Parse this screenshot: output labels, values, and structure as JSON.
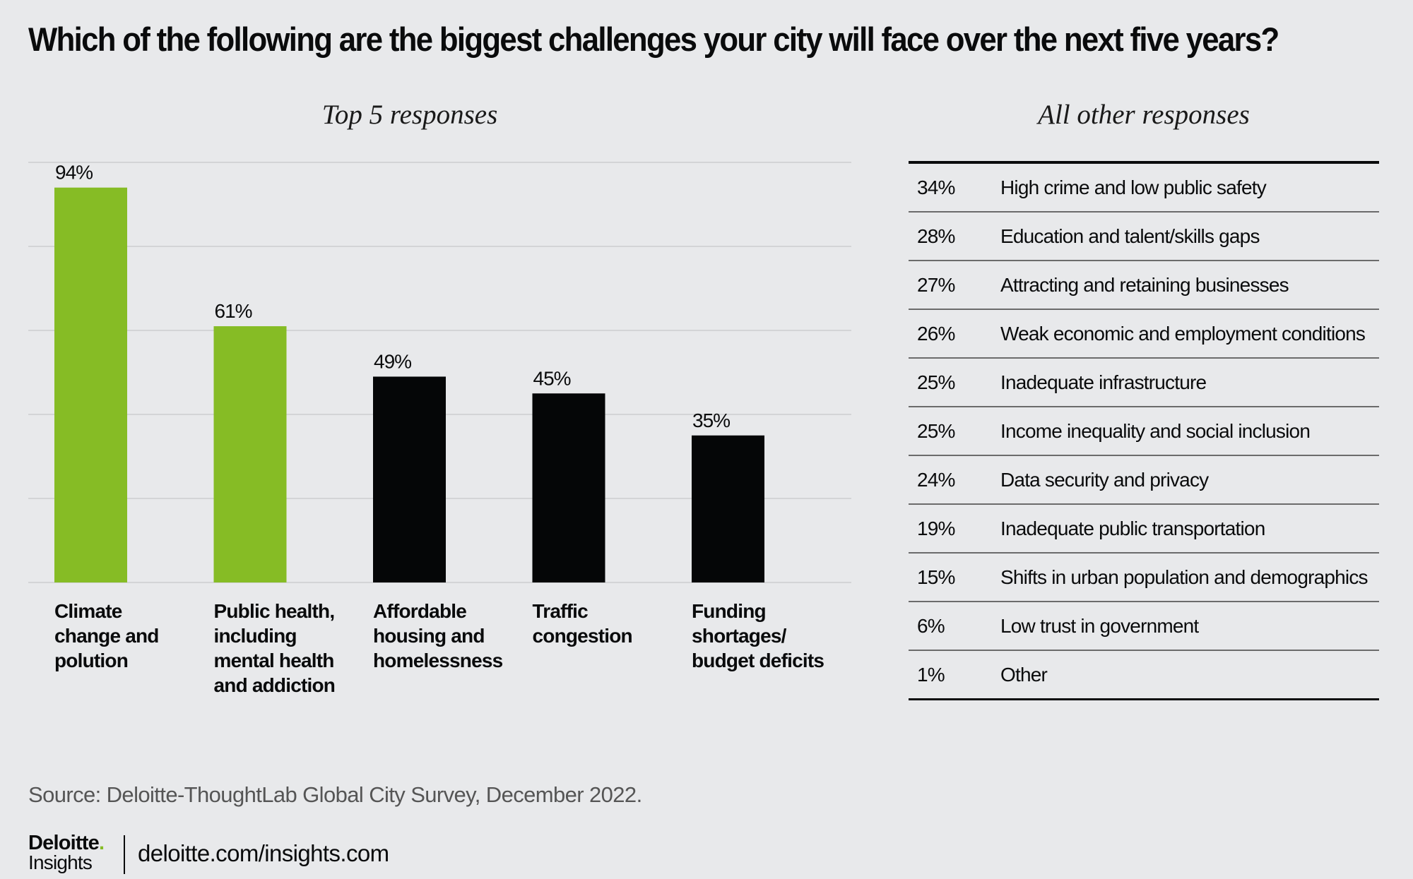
{
  "title": "Which of the following are the biggest challenges your city will face over the next five years?",
  "left_section_title": "Top 5 responses",
  "right_section_title": "All other responses",
  "colors": {
    "highlight": "#86bc25",
    "default": "#050607",
    "gridline": "#d3d4d6",
    "background": "#e8e9eb"
  },
  "chart_data": {
    "type": "bar",
    "title": "Top 5 responses",
    "xlabel": "",
    "ylabel": "",
    "ylim": [
      0,
      100
    ],
    "grid": true,
    "gridline_step": 20,
    "categories": [
      "Climate\nchange and\npolution",
      "Public health,\nincluding\nmental health\nand addiction",
      "Affordable\nhousing and\nhomelessness",
      "Traffic\ncongestion",
      "Funding\nshortages/\nbudget deficits"
    ],
    "values": [
      94,
      61,
      49,
      45,
      35
    ],
    "data_labels": [
      "94%",
      "61%",
      "49%",
      "45%",
      "35%"
    ],
    "highlighted": [
      true,
      true,
      false,
      false,
      false
    ]
  },
  "other_responses": [
    {
      "pct": "34%",
      "label": "High crime and low public safety"
    },
    {
      "pct": "28%",
      "label": "Education and talent/skills gaps"
    },
    {
      "pct": "27%",
      "label": "Attracting and retaining businesses"
    },
    {
      "pct": "26%",
      "label": "Weak economic and employment conditions"
    },
    {
      "pct": "25%",
      "label": "Inadequate infrastructure"
    },
    {
      "pct": "25%",
      "label": "Income inequality and social inclusion"
    },
    {
      "pct": "24%",
      "label": "Data security and privacy"
    },
    {
      "pct": "19%",
      "label": "Inadequate public transportation"
    },
    {
      "pct": "15%",
      "label": "Shifts in urban population and demographics"
    },
    {
      "pct": "6%",
      "label": "Low trust in government"
    },
    {
      "pct": "1%",
      "label": "Other"
    }
  ],
  "footer": {
    "source": "Source: Deloitte-ThoughtLab Global City Survey, December 2022.",
    "logo_brand": "Deloitte",
    "logo_dot": ".",
    "logo_sub": "Insights",
    "url": "deloitte.com/insights.com"
  }
}
